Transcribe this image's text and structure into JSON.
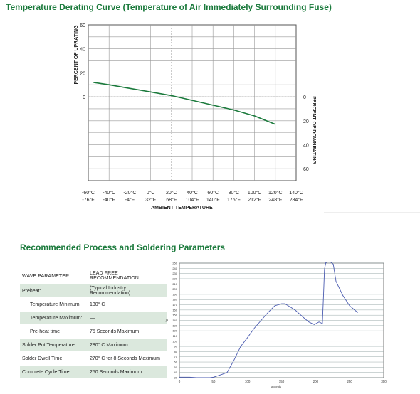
{
  "page": {
    "title": "Temperature Derating Curve (Temperature of Air Immediately Surrounding Fuse)",
    "section_title": "Recommended Process and Soldering Parameters"
  },
  "chart_data": [
    {
      "type": "line",
      "title": "Temperature Derating Curve (Temperature of Air Immediately Surrounding Fuse)",
      "xlabel": "AMBIENT TEMPERATURE",
      "ylabel_left": "PERCENT OF UPRATING",
      "ylabel_right": "PERCENT OF DOWNRATING",
      "x_ticks_c": [
        "-60°C",
        "-40°C",
        "-20°C",
        "0°C",
        "20°C",
        "40°C",
        "60°C",
        "80°C",
        "100°C",
        "120°C",
        "140°C"
      ],
      "x_ticks_f": [
        "-76°F",
        "-40°F",
        "-4°F",
        "32°F",
        "68°F",
        "104°F",
        "140°F",
        "176°F",
        "212°F",
        "248°F",
        "284°F"
      ],
      "x_values": [
        -60,
        -40,
        -20,
        0,
        20,
        40,
        60,
        80,
        100,
        120,
        140
      ],
      "y_left_ticks": [
        "60",
        "40",
        "20",
        "0"
      ],
      "y_right_ticks": [
        "0",
        "20",
        "40",
        "60"
      ],
      "xlim": [
        -60,
        140
      ],
      "ylim": [
        -70,
        60
      ],
      "grid": true,
      "series": [
        {
          "color": "#1b7a3c",
          "x": [
            -55,
            -40,
            -20,
            0,
            20,
            40,
            60,
            80,
            100,
            120
          ],
          "y": [
            12,
            10,
            7,
            4,
            1,
            -3,
            -7,
            -11,
            -16,
            -23
          ]
        }
      ]
    },
    {
      "type": "line",
      "xlabel": "seconds",
      "ylabel": "°C",
      "xlim": [
        0,
        300
      ],
      "ylim": [
        30,
        250
      ],
      "x_ticks": [
        "0",
        "50",
        "100",
        "150",
        "200",
        "250",
        "300"
      ],
      "y_ticks": [
        "30",
        "40",
        "50",
        "60",
        "70",
        "80",
        "90",
        "100",
        "110",
        "120",
        "130",
        "140",
        "150",
        "160",
        "170",
        "180",
        "190",
        "200",
        "210",
        "220",
        "230",
        "240",
        "250"
      ],
      "grid": true,
      "series": [
        {
          "color": "#4a5bb0",
          "x": [
            0,
            15,
            25,
            35,
            45,
            50,
            55,
            62,
            70,
            80,
            90,
            100,
            110,
            120,
            130,
            140,
            150,
            155,
            160,
            170,
            180,
            190,
            198,
            205,
            210,
            212,
            213,
            215,
            218,
            222,
            226,
            230,
            240,
            250,
            262
          ],
          "y": [
            31,
            31,
            30,
            30,
            30,
            31,
            33,
            36,
            40,
            63,
            90,
            107,
            125,
            140,
            155,
            168,
            172,
            172,
            168,
            160,
            148,
            137,
            132,
            137,
            134,
            200,
            238,
            251,
            252,
            252,
            248,
            215,
            188,
            168,
            155
          ]
        }
      ]
    }
  ],
  "table": {
    "headers": [
      "WAVE PARAMETER",
      "LEAD FREE RECOMMENDATION"
    ],
    "rows": [
      {
        "param": "Preheat:",
        "value": "(Typical Industry Recommendation)"
      },
      {
        "param": "Temperature Minimum:",
        "value": "130° C"
      },
      {
        "param": "Temperature Maximum:",
        "value": "—"
      },
      {
        "param": "Pre-heat time",
        "value": "75 Seconds Maximum"
      },
      {
        "param": "Solder Pot Temperature",
        "value": "280° C Maximum"
      },
      {
        "param": "Solder Dwell Time",
        "value": "270° C for 8 Seconds Maximum"
      },
      {
        "param": "Complete Cycle Time",
        "value": "250 Seconds Maximum"
      }
    ]
  }
}
